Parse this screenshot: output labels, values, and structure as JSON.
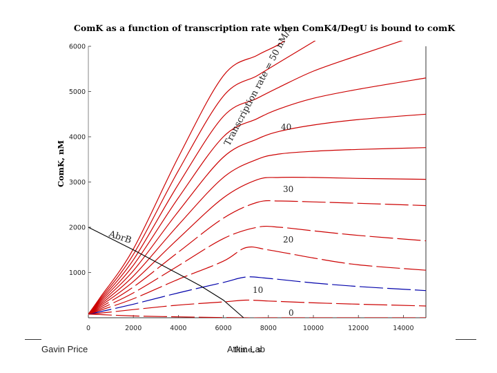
{
  "chart_data": {
    "type": "line",
    "title": "ComK as a function of transcription rate when ComK4/DegU is bound to comK",
    "xlabel": "Time, s",
    "ylabel": "ComK, nM",
    "xlim": [
      0,
      15000
    ],
    "ylim": [
      0,
      6000
    ],
    "xticks": [
      0,
      2000,
      4000,
      6000,
      8000,
      10000,
      12000,
      14000
    ],
    "yticks": [
      1000,
      2000,
      3000,
      4000,
      5000,
      6000
    ],
    "series": [
      {
        "name": "rate 0",
        "color": "#cc0000",
        "style": "dashed",
        "x": [
          0,
          500,
          2000,
          4000,
          6000,
          7000,
          8000,
          10000,
          15000
        ],
        "y": [
          80,
          70,
          40,
          20,
          5,
          0,
          0,
          0,
          0
        ]
      },
      {
        "name": "rate 5",
        "color": "#cc0000",
        "style": "dashed",
        "x": [
          0,
          500,
          2000,
          4000,
          6000,
          7000,
          8000,
          10000,
          12000,
          15000
        ],
        "y": [
          80,
          100,
          180,
          280,
          350,
          390,
          370,
          330,
          300,
          260
        ]
      },
      {
        "name": "rate 10",
        "color": "#0000aa",
        "style": "dashed",
        "x": [
          0,
          500,
          2000,
          4000,
          6000,
          7000,
          8000,
          10000,
          12000,
          15000
        ],
        "y": [
          80,
          130,
          300,
          550,
          780,
          900,
          870,
          770,
          690,
          600
        ]
      },
      {
        "name": "rate 15",
        "color": "#cc0000",
        "style": "dashed",
        "x": [
          0,
          500,
          2000,
          4000,
          6000,
          7000,
          8000,
          10000,
          12000,
          15000
        ],
        "y": [
          80,
          160,
          420,
          850,
          1250,
          1550,
          1500,
          1320,
          1170,
          1050
        ]
      },
      {
        "name": "rate 20",
        "color": "#cc0000",
        "style": "dashed",
        "x": [
          0,
          500,
          2000,
          4000,
          6000,
          7500,
          8500,
          10000,
          12000,
          15000
        ],
        "y": [
          80,
          190,
          550,
          1150,
          1750,
          2000,
          2000,
          1920,
          1820,
          1700
        ]
      },
      {
        "name": "rate 25",
        "color": "#cc0000",
        "style": "dashed",
        "x": [
          0,
          500,
          2000,
          4000,
          6000,
          7500,
          8500,
          10000,
          12000,
          15000
        ],
        "y": [
          80,
          220,
          680,
          1450,
          2200,
          2550,
          2580,
          2560,
          2530,
          2480
        ]
      },
      {
        "name": "rate 30",
        "color": "#cc0000",
        "style": "solid",
        "x": [
          0,
          500,
          2000,
          4000,
          6000,
          7500,
          8500,
          10000,
          12000,
          15000
        ],
        "y": [
          80,
          250,
          800,
          1750,
          2650,
          3050,
          3100,
          3100,
          3080,
          3060
        ]
      },
      {
        "name": "rate 35",
        "color": "#cc0000",
        "style": "solid",
        "x": [
          0,
          500,
          2000,
          4000,
          6000,
          7500,
          8500,
          10000,
          12000,
          15000
        ],
        "y": [
          80,
          280,
          920,
          2050,
          3100,
          3500,
          3620,
          3680,
          3720,
          3760
        ]
      },
      {
        "name": "rate 40",
        "color": "#cc0000",
        "style": "solid",
        "x": [
          0,
          500,
          2000,
          4000,
          6000,
          7500,
          8500,
          10000,
          12000,
          15000
        ],
        "y": [
          80,
          310,
          1040,
          2350,
          3550,
          3950,
          4120,
          4260,
          4380,
          4500
        ]
      },
      {
        "name": "rate 45",
        "color": "#cc0000",
        "style": "solid",
        "x": [
          0,
          500,
          2000,
          4000,
          6000,
          7500,
          8500,
          10000,
          12000,
          15000
        ],
        "y": [
          80,
          340,
          1160,
          2650,
          4000,
          4400,
          4620,
          4850,
          5050,
          5300
        ]
      },
      {
        "name": "rate 50",
        "color": "#cc0000",
        "style": "solid",
        "x": [
          0,
          500,
          2000,
          4000,
          6000,
          7500,
          8500,
          10000,
          12000,
          15000
        ],
        "y": [
          80,
          370,
          1280,
          2950,
          4450,
          4850,
          5100,
          5450,
          5800,
          6300
        ]
      },
      {
        "name": "rate 55",
        "color": "#cc0000",
        "style": "solid",
        "x": [
          0,
          500,
          2000,
          4000,
          6000,
          7500,
          8500,
          10000,
          11000,
          12500
        ],
        "y": [
          80,
          400,
          1400,
          3250,
          4900,
          5350,
          5650,
          6100,
          6400,
          6800
        ]
      },
      {
        "name": "rate 60",
        "color": "#cc0000",
        "style": "solid",
        "x": [
          0,
          500,
          2000,
          4000,
          6000,
          7500,
          8500,
          9500
        ],
        "y": [
          80,
          430,
          1520,
          3550,
          5350,
          5800,
          6050,
          6400
        ]
      },
      {
        "name": "AbrB",
        "color": "#000000",
        "style": "solid",
        "x": [
          0,
          2000,
          4000,
          5000,
          6000,
          6900
        ],
        "y": [
          2000,
          1500,
          970,
          700,
          390,
          0
        ]
      }
    ],
    "annotations": {
      "rate_label": "Transcription rate = 50 nM/s",
      "abrb_label": "AbrB",
      "rate_values": [
        "40",
        "30",
        "20",
        "10",
        "0"
      ]
    }
  },
  "footer": {
    "left": "Gavin Price",
    "center": "Arkin Lab",
    "center_overlay": "Time, s"
  }
}
